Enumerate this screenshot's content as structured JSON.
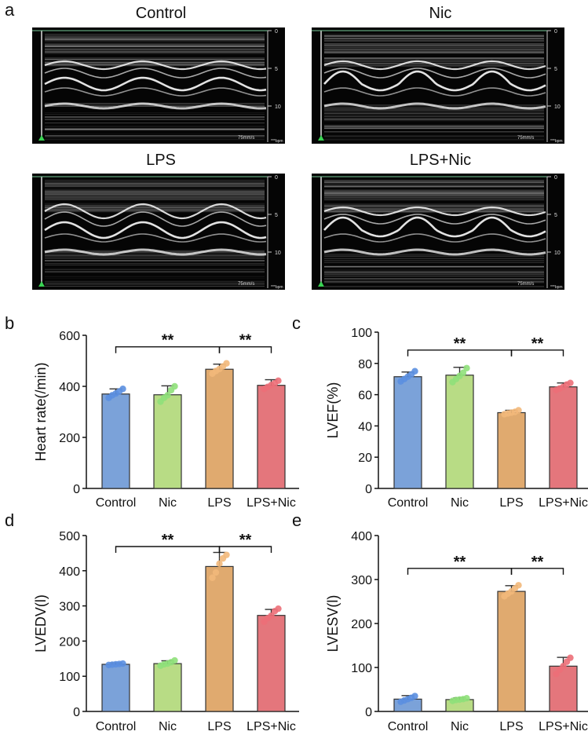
{
  "panels": {
    "a": "a",
    "b": "b",
    "c": "c",
    "d": "d",
    "e": "e"
  },
  "echo": {
    "titles": [
      "Control",
      "Nic",
      "LPS",
      "LPS+Nic"
    ],
    "depth_ticks": [
      "0",
      "5",
      "10"
    ],
    "speed_label": "75mm/s",
    "bpm_label": "***bpm"
  },
  "chart_data": [
    {
      "type": "bar",
      "categories": [
        "Control",
        "Nic",
        "LPS",
        "LPS+Nic"
      ],
      "values": [
        370,
        367,
        467,
        404
      ],
      "errors": [
        20,
        35,
        20,
        22
      ],
      "points": [
        [
          355,
          365,
          372,
          380,
          390
        ],
        [
          340,
          355,
          365,
          385,
          400
        ],
        [
          450,
          460,
          468,
          478,
          490
        ],
        [
          390,
          398,
          405,
          412,
          422
        ]
      ],
      "colors": [
        "#7ba2d9",
        "#b8dc85",
        "#e0aa6f",
        "#e4767c"
      ],
      "dot_colors": [
        "#5b8fe0",
        "#8fe07a",
        "#f2b87a",
        "#ec6f78"
      ],
      "ylabel": "Heart rate(/min)",
      "ylim": [
        0,
        600
      ],
      "yticks": [
        0,
        200,
        400,
        600
      ],
      "significance": [
        {
          "from": 0,
          "to": 2,
          "label": "**"
        },
        {
          "from": 2,
          "to": 3,
          "label": "**"
        }
      ]
    },
    {
      "type": "bar",
      "categories": [
        "Control",
        "Nic",
        "LPS",
        "LPS+Nic"
      ],
      "values": [
        71.5,
        72.5,
        48.5,
        65
      ],
      "errors": [
        3,
        5,
        1.5,
        2.5
      ],
      "points": [
        [
          68.5,
          70,
          71.5,
          73,
          75
        ],
        [
          68,
          70,
          72,
          74,
          77
        ],
        [
          47.5,
          48,
          48.5,
          49,
          50
        ],
        [
          63,
          64,
          65,
          66.5,
          67.5
        ]
      ],
      "colors": [
        "#7ba2d9",
        "#b8dc85",
        "#e0aa6f",
        "#e4767c"
      ],
      "dot_colors": [
        "#5b8fe0",
        "#8fe07a",
        "#f2b87a",
        "#ec6f78"
      ],
      "ylabel": "LVEF(%)",
      "ylim": [
        0,
        100
      ],
      "yticks": [
        0,
        20,
        40,
        60,
        80,
        100
      ],
      "significance": [
        {
          "from": 0,
          "to": 2,
          "label": "**"
        },
        {
          "from": 2,
          "to": 3,
          "label": "**"
        }
      ]
    },
    {
      "type": "bar",
      "categories": [
        "Control",
        "Nic",
        "LPS",
        "LPS+Nic"
      ],
      "values": [
        134,
        136,
        412,
        273
      ],
      "errors": [
        4,
        8,
        40,
        17
      ],
      "points": [
        [
          132,
          133,
          134,
          135,
          136
        ],
        [
          130,
          134,
          136,
          140,
          145
        ],
        [
          380,
          395,
          420,
          435,
          445
        ],
        [
          255,
          265,
          272,
          285,
          292
        ]
      ],
      "colors": [
        "#7ba2d9",
        "#b8dc85",
        "#e0aa6f",
        "#e4767c"
      ],
      "dot_colors": [
        "#5b8fe0",
        "#8fe07a",
        "#f2b87a",
        "#ec6f78"
      ],
      "ylabel": "LVEDV(l)",
      "ylim": [
        0,
        500
      ],
      "yticks": [
        0,
        100,
        200,
        300,
        400,
        500
      ],
      "significance": [
        {
          "from": 0,
          "to": 2,
          "label": "**"
        },
        {
          "from": 2,
          "to": 3,
          "label": "**"
        }
      ]
    },
    {
      "type": "bar",
      "categories": [
        "Control",
        "Nic",
        "LPS",
        "LPS+Nic"
      ],
      "values": [
        28,
        27,
        273,
        103
      ],
      "errors": [
        8,
        4,
        13,
        20
      ],
      "points": [
        [
          22,
          25,
          28,
          31,
          35
        ],
        [
          24,
          26,
          27,
          28,
          30
        ],
        [
          262,
          268,
          273,
          280,
          287
        ],
        [
          85,
          95,
          103,
          113,
          122
        ]
      ],
      "colors": [
        "#7ba2d9",
        "#b8dc85",
        "#e0aa6f",
        "#e4767c"
      ],
      "dot_colors": [
        "#5b8fe0",
        "#8fe07a",
        "#f2b87a",
        "#ec6f78"
      ],
      "ylabel": "LVESV(l)",
      "ylim": [
        0,
        400
      ],
      "yticks": [
        0,
        100,
        200,
        300,
        400
      ],
      "significance": [
        {
          "from": 0,
          "to": 2,
          "label": "**"
        },
        {
          "from": 2,
          "to": 3,
          "label": "**"
        }
      ]
    }
  ]
}
